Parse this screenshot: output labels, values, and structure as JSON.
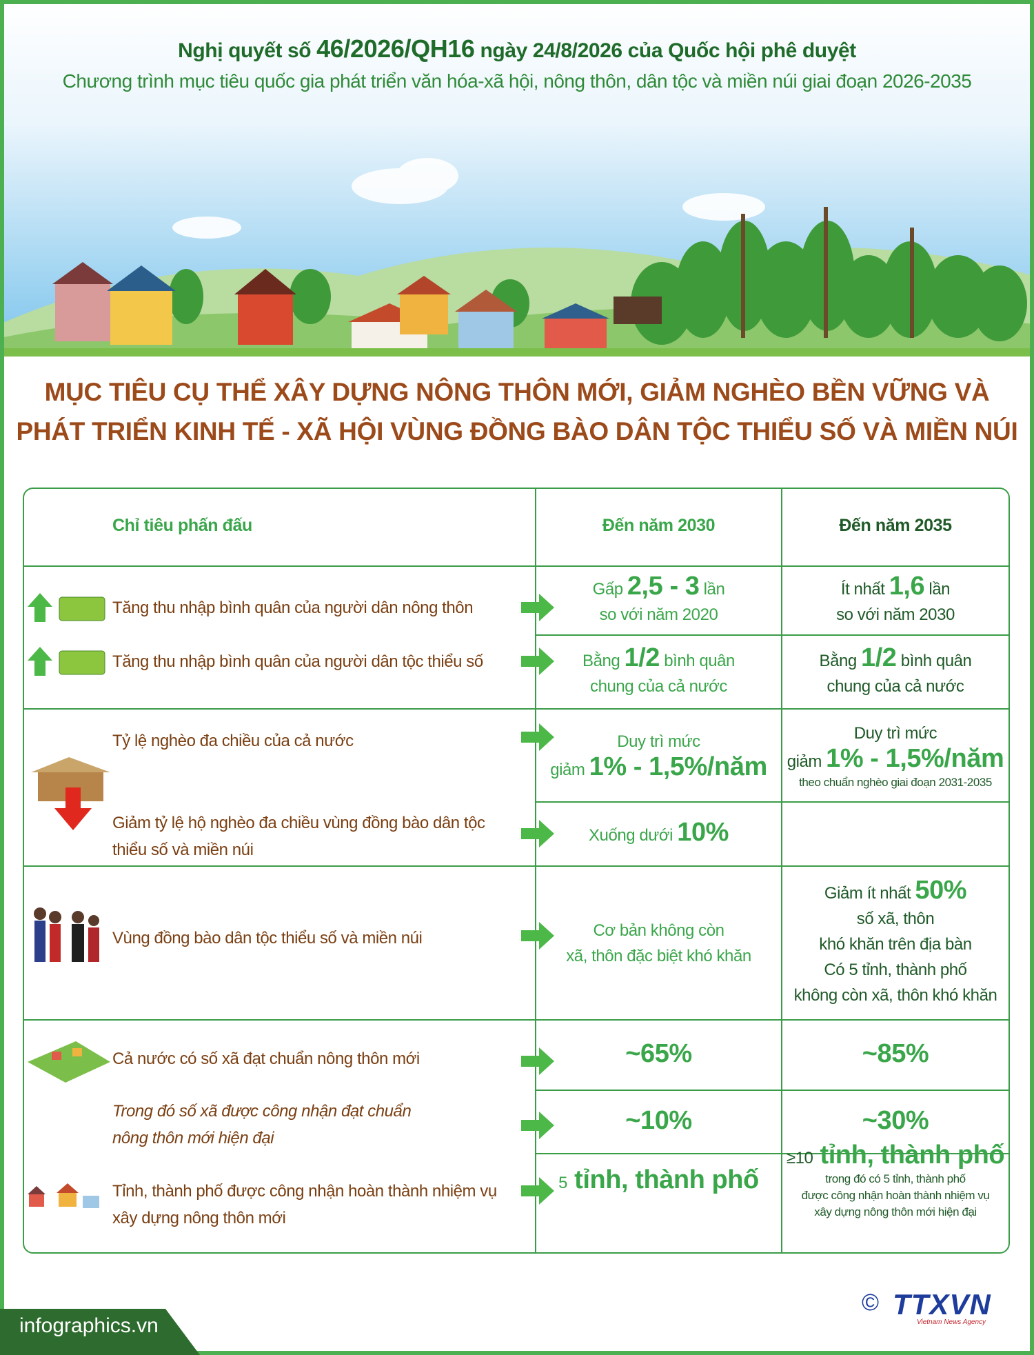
{
  "header": {
    "line1": [
      "Nghị quyết số ",
      "46/2026/QH16",
      " ngày 24/8/2026 của Quốc hội phê duyệt"
    ],
    "line2": "Chương trình mục tiêu quốc gia phát triển văn hóa-xã hội, nông thôn, dân tộc và miền núi giai đoạn 2026-2035"
  },
  "title": [
    "MỤC TIÊU CỤ THỂ XÂY DỰNG NÔNG THÔN MỚI, GIẢM NGHÈO BỀN VỮNG VÀ",
    "PHÁT TRIỂN KINH TẾ - XÃ HỘI VÙNG ĐỒNG BÀO DÂN TỘC THIỂU SỐ VÀ MIỀN NÚI"
  ],
  "table": {
    "columns": [
      "Chỉ tiêu phấn đấu",
      "Đến năm 2030",
      "Đến năm 2035"
    ],
    "rows": [
      {
        "indicator": [
          "Tăng thu nhập bình quân của người dân nông thôn"
        ],
        "y2030": [
          [
            "Gấp ",
            "2,5 - 3",
            " lần"
          ],
          [
            "so với năm 2020"
          ]
        ],
        "y2035": [
          [
            "Ít nhất ",
            "1,6",
            " lần"
          ],
          [
            "so với năm 2030"
          ]
        ]
      },
      {
        "indicator": [
          "Tăng thu nhập bình quân của người dân tộc thiểu số"
        ],
        "y2030": [
          [
            "Bằng ",
            "1/2",
            " bình quân"
          ],
          [
            "chung của cả nước"
          ]
        ],
        "y2035": [
          [
            "Bằng ",
            "1/2",
            " bình quân"
          ],
          [
            "chung của cả nước"
          ]
        ]
      },
      {
        "indicator": [
          "Tỷ lệ nghèo đa chiều của cả nước"
        ],
        "y2030": [
          [
            "Duy trì mức"
          ],
          [
            "giảm ",
            "1% - 1,5%/năm"
          ]
        ],
        "y2035": [
          [
            "Duy trì mức"
          ],
          [
            "giảm ",
            "1% - 1,5%/năm"
          ],
          [
            "theo chuẩn nghèo giai đoạn 2031-2035"
          ]
        ]
      },
      {
        "indicator": [
          "Giảm tỷ lệ hộ nghèo đa chiều vùng đồng bào dân tộc",
          "thiểu số và miền núi"
        ],
        "y2030": [
          [
            "Xuống dưới ",
            "10%"
          ]
        ]
      },
      {
        "indicator": [
          "Vùng đồng bào dân tộc thiểu số và miền núi"
        ],
        "y2030": [
          [
            "Cơ bản không còn"
          ],
          [
            "xã, thôn đặc biệt khó khăn"
          ]
        ],
        "y2035": [
          [
            "Giảm ít nhất ",
            "50%"
          ],
          [
            "số xã, thôn"
          ],
          [
            "khó khăn trên địa bàn"
          ],
          [
            "Có 5 tỉnh, thành phố"
          ],
          [
            "không còn xã, thôn khó khăn"
          ]
        ]
      },
      {
        "indicator": [
          "Cả nước có số xã đạt chuẩn nông thôn mới"
        ],
        "y2030": [
          [
            "~65%"
          ]
        ],
        "y2035": [
          [
            "~85%"
          ]
        ]
      },
      {
        "indicator": [
          "Trong đó số xã được công nhận đạt chuẩn",
          "nông thôn mới hiện đại"
        ],
        "y2030": [
          [
            "~10%"
          ]
        ],
        "y2035": [
          [
            "~30%"
          ]
        ]
      },
      {
        "indicator": [
          "Tỉnh, thành phố được công nhận hoàn thành nhiệm vụ",
          "xây dựng nông thôn mới"
        ],
        "y2030": [
          [
            "5",
            " tỉnh, thành phố"
          ]
        ],
        "y2035": [
          [
            "≥10",
            " tỉnh, thành phố"
          ],
          [
            "trong đó có 5 tỉnh, thành phố"
          ],
          [
            "được công nhận hoàn thành nhiệm vụ"
          ],
          [
            "xây dựng nông thôn mới hiện đại"
          ]
        ]
      }
    ]
  },
  "footer": {
    "site": "infographics.vn",
    "copyright": "©",
    "logo": "TTXVN",
    "logo_sub": "Vietnam News Agency"
  }
}
